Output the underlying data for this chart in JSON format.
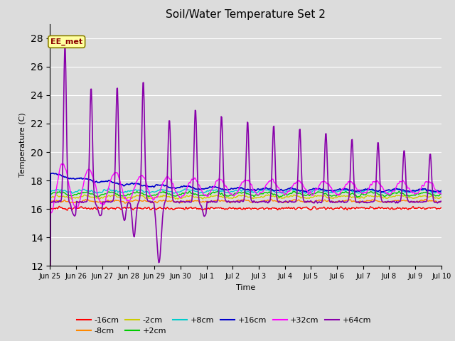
{
  "title": "Soil/Water Temperature Set 2",
  "xlabel": "Time",
  "ylabel": "Temperature (C)",
  "ylim": [
    12,
    29
  ],
  "yticks": [
    12,
    14,
    16,
    18,
    20,
    22,
    24,
    26,
    28
  ],
  "background_color": "#dcdcdc",
  "plot_bg_color": "#dcdcdc",
  "annotation_text": "EE_met",
  "annotation_bg": "#ffffa0",
  "annotation_border": "#8B0000",
  "series": {
    "-16cm": {
      "color": "#ff0000",
      "linewidth": 1.0
    },
    "-8cm": {
      "color": "#ff8800",
      "linewidth": 1.0
    },
    "-2cm": {
      "color": "#cccc00",
      "linewidth": 1.0
    },
    "+2cm": {
      "color": "#00cc00",
      "linewidth": 1.0
    },
    "+8cm": {
      "color": "#00cccc",
      "linewidth": 1.0
    },
    "+16cm": {
      "color": "#0000cc",
      "linewidth": 1.2
    },
    "+32cm": {
      "color": "#ff00ff",
      "linewidth": 1.0
    },
    "+64cm": {
      "color": "#8800aa",
      "linewidth": 1.2
    }
  },
  "tick_labels": [
    "Jun 25",
    "Jun 26",
    "Jun 27",
    "Jun 28",
    "Jun 29",
    "Jun 30",
    "Jul 1",
    "Jul 2",
    "Jul 3",
    "Jul 4",
    "Jul 5",
    "Jul 6",
    "Jul 7",
    "Jul 8",
    "Jul 9",
    "Jul 10"
  ],
  "legend_fontsize": 8,
  "title_fontsize": 11
}
